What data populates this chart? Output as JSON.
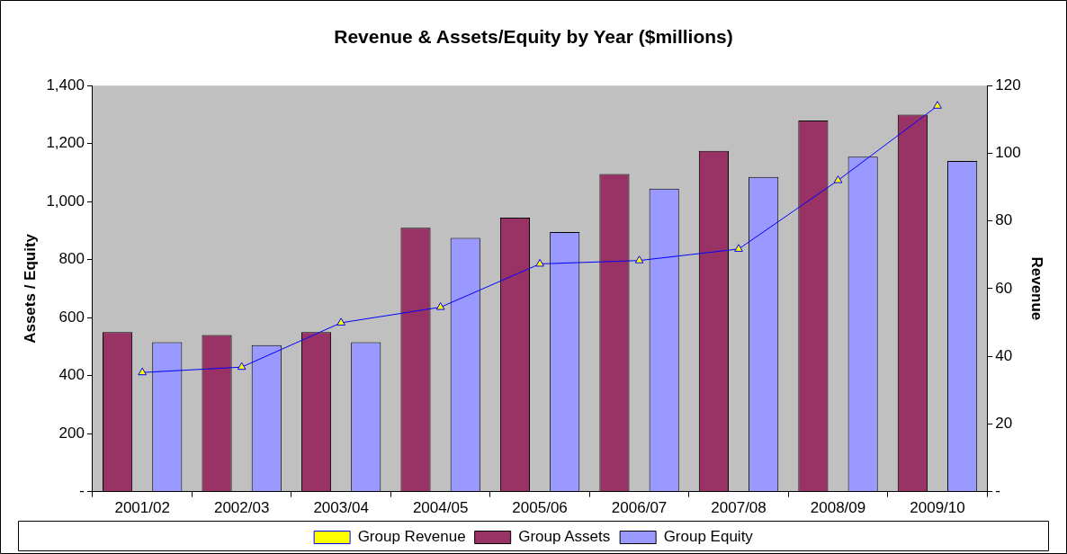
{
  "chart_data": {
    "type": "bar",
    "title": "Revenue & Assets/Equity by Year ($millions)",
    "ylabel": "Assets / Equity",
    "y2label": "Revenue",
    "categories": [
      "2001/02",
      "2002/03",
      "2003/04",
      "2004/05",
      "2005/06",
      "2006/07",
      "2007/08",
      "2008/09",
      "2009/10"
    ],
    "series": [
      {
        "name": "Group Assets",
        "color": "#993366",
        "values": [
          550,
          540,
          550,
          910,
          945,
          1095,
          1175,
          1280,
          1300
        ]
      },
      {
        "name": "Group Equity",
        "color": "#9999ff",
        "values": [
          515,
          505,
          515,
          875,
          895,
          1045,
          1085,
          1155,
          1140
        ]
      },
      {
        "name": "Group Revenue",
        "type": "line",
        "axis": "y2",
        "color": "#0000ff",
        "marker": "triangle",
        "values": [
          35.2,
          36.8,
          49.9,
          54.5,
          67.3,
          68.3,
          71.7,
          92,
          114
        ]
      }
    ],
    "ylim": [
      0,
      1400
    ],
    "yticks": [
      {
        "value": 0,
        "label": "-"
      },
      {
        "value": 200,
        "label": "200"
      },
      {
        "value": 400,
        "label": "400"
      },
      {
        "value": 600,
        "label": "600"
      },
      {
        "value": 800,
        "label": "800"
      },
      {
        "value": 1000,
        "label": "1,000"
      },
      {
        "value": 1200,
        "label": "1,200"
      },
      {
        "value": 1400,
        "label": "1,400"
      }
    ],
    "y2lim": [
      0,
      120
    ],
    "y2ticks": [
      {
        "value": 0,
        "label": "-"
      },
      20,
      40,
      60,
      80,
      100,
      120
    ],
    "grid": false,
    "legend": "bottom"
  }
}
